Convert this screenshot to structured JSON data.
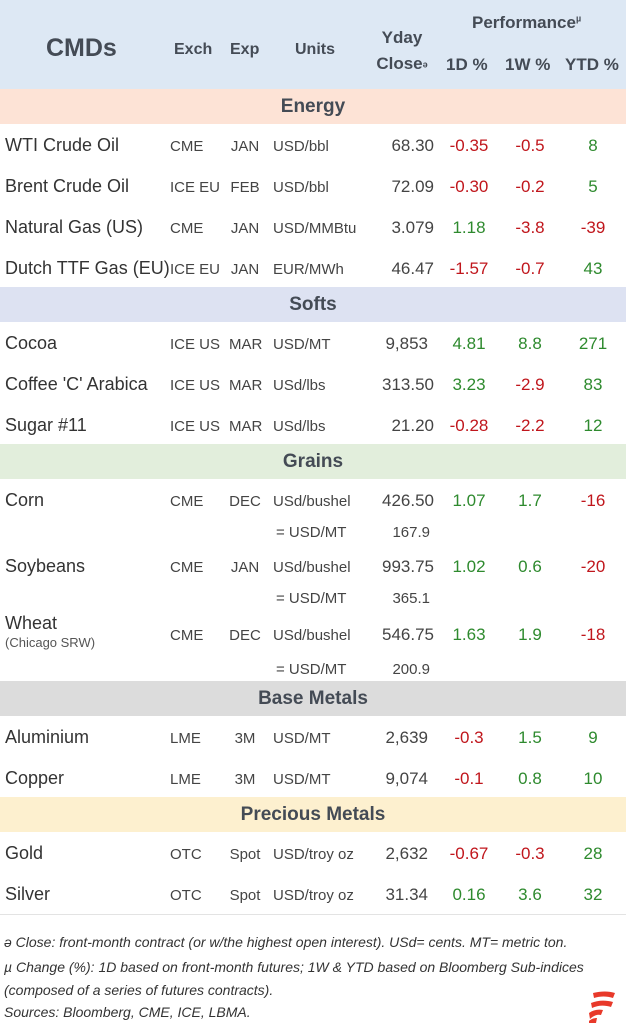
{
  "header": {
    "title": "CMDs",
    "col_exch": "Exch",
    "col_exp": "Exp",
    "col_units": "Units",
    "col_yday_line1": "Yday",
    "col_yday_line2": "Close",
    "col_yday_mark": "ə",
    "performance": "Performance",
    "performance_mark": "µ",
    "col_1d": "1D %",
    "col_1w": "1W %",
    "col_ytd": "YTD %"
  },
  "sections": {
    "energy": "Energy",
    "softs": "Softs",
    "grains": "Grains",
    "base": "Base Metals",
    "precious": "Precious Metals"
  },
  "rows": {
    "wti": {
      "name": "WTI Crude Oil",
      "exch": "CME",
      "exp": "JAN",
      "units": "USD/bbl",
      "close": "68.30",
      "d1": "-0.35",
      "w1": "-0.5",
      "ytd": "8"
    },
    "brent": {
      "name": "Brent Crude Oil",
      "exch": "ICE EU",
      "exp": "FEB",
      "units": "USD/bbl",
      "close": "72.09",
      "d1": "-0.30",
      "w1": "-0.2",
      "ytd": "5"
    },
    "natgas": {
      "name": "Natural Gas (US)",
      "exch": "CME",
      "exp": "JAN",
      "units": "USD/MMBtu",
      "close": "3.079",
      "d1": "1.18",
      "w1": "-3.8",
      "ytd": "-39"
    },
    "ttf": {
      "name": "Dutch TTF Gas (EU)",
      "exch": "ICE EU",
      "exp": "JAN",
      "units": "EUR/MWh",
      "close": "46.47",
      "d1": "-1.57",
      "w1": "-0.7",
      "ytd": "43"
    },
    "cocoa": {
      "name": "Cocoa",
      "exch": "ICE US",
      "exp": "MAR",
      "units": "USD/MT",
      "close": "9,853",
      "d1": "4.81",
      "w1": "8.8",
      "ytd": "271"
    },
    "coffee": {
      "name": "Coffee 'C' Arabica",
      "exch": "ICE US",
      "exp": "MAR",
      "units": "USd/lbs",
      "close": "313.50",
      "d1": "3.23",
      "w1": "-2.9",
      "ytd": "83"
    },
    "sugar": {
      "name": "Sugar #11",
      "exch": "ICE US",
      "exp": "MAR",
      "units": "USd/lbs",
      "close": "21.20",
      "d1": "-0.28",
      "w1": "-2.2",
      "ytd": "12"
    },
    "corn": {
      "name": "Corn",
      "exch": "CME",
      "exp": "DEC",
      "units": "USd/bushel",
      "close": "426.50",
      "d1": "1.07",
      "w1": "1.7",
      "ytd": "-16",
      "conv_label": "= USD/MT",
      "conv_value": "167.9"
    },
    "soy": {
      "name": "Soybeans",
      "exch": "CME",
      "exp": "JAN",
      "units": "USd/bushel",
      "close": "993.75",
      "d1": "1.02",
      "w1": "0.6",
      "ytd": "-20",
      "conv_label": "= USD/MT",
      "conv_value": "365.1"
    },
    "wheat": {
      "name": "Wheat",
      "sub": "(Chicago SRW)",
      "exch": "CME",
      "exp": "DEC",
      "units": "USd/bushel",
      "close": "546.75",
      "d1": "1.63",
      "w1": "1.9",
      "ytd": "-18",
      "conv_label": "= USD/MT",
      "conv_value": "200.9"
    },
    "alu": {
      "name": "Aluminium",
      "exch": "LME",
      "exp": "3M",
      "units": "USD/MT",
      "close": "2,639",
      "d1": "-0.3",
      "w1": "1.5",
      "ytd": "9"
    },
    "copper": {
      "name": "Copper",
      "exch": "LME",
      "exp": "3M",
      "units": "USD/MT",
      "close": "9,074",
      "d1": "-0.1",
      "w1": "0.8",
      "ytd": "10"
    },
    "gold": {
      "name": "Gold",
      "exch": "OTC",
      "exp": "Spot",
      "units": "USD/troy oz",
      "close": "2,632",
      "d1": "-0.67",
      "w1": "-0.3",
      "ytd": "28"
    },
    "silver": {
      "name": "Silver",
      "exch": "OTC",
      "exp": "Spot",
      "units": "USD/troy oz",
      "close": "31.34",
      "d1": "0.16",
      "w1": "3.6",
      "ytd": "32"
    }
  },
  "footnotes": {
    "line1": "ə Close: front-month contract (or w/the highest open interest). USd= cents. MT= metric ton.",
    "line2": "µ Change (%): 1D based on front-month futures; 1W & YTD based on Bloomberg Sub-indices",
    "line3": "(composed of a series of futures contracts).",
    "line4": "Sources: Bloomberg, CME, ICE, LBMA."
  },
  "colors": {
    "negative": "#c0161c",
    "positive": "#2e8a2e",
    "header_bg": "#dde8f4",
    "energy_bg": "#fde3d6",
    "softs_bg": "#dde2f2",
    "grains_bg": "#e2eedc",
    "base_bg": "#dcdcdc",
    "precious_bg": "#fdf0cf",
    "logo": "#e8392a"
  }
}
